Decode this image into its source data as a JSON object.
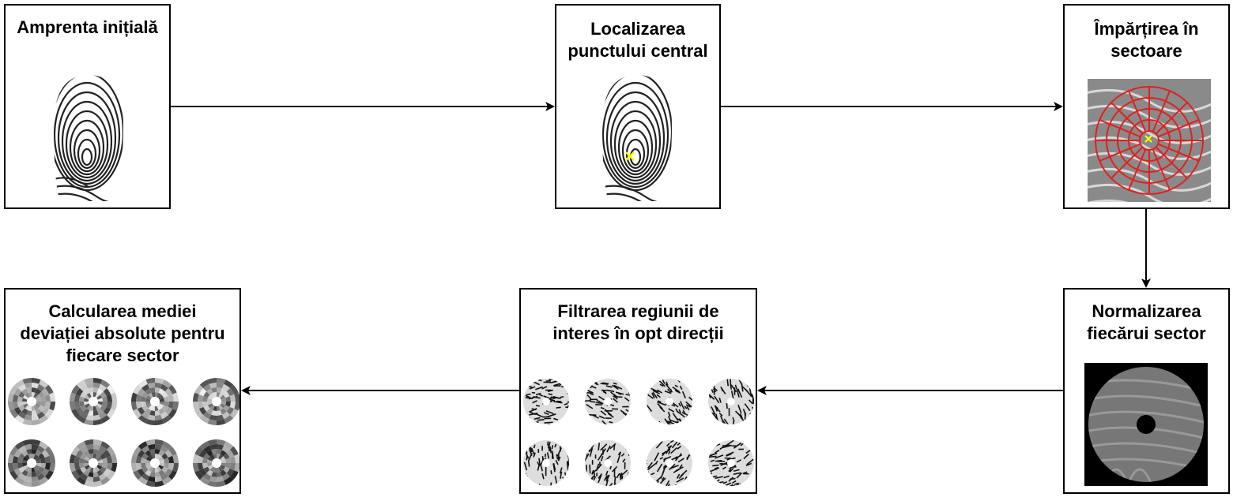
{
  "steps": {
    "initial": {
      "title": "Amprenta inițială"
    },
    "center": {
      "title": "Localizarea\npunctului central"
    },
    "sectors": {
      "title": "Împărțirea în\nsectoare"
    },
    "normalize": {
      "title": "Normalizarea\nfiecărui sector"
    },
    "filter": {
      "title": "Filtrarea regiunii de\ninteres în opt direcții"
    },
    "aad": {
      "title": "Calcularea mediei\ndeviației absolute pentru\nfiecare sector"
    }
  },
  "colors": {
    "arrow": "#000000",
    "grid": "#e02020",
    "core_marker": "#ffff00"
  },
  "icons": {
    "core_marker": "x-marker-icon",
    "arrowhead": "arrowhead-icon"
  }
}
